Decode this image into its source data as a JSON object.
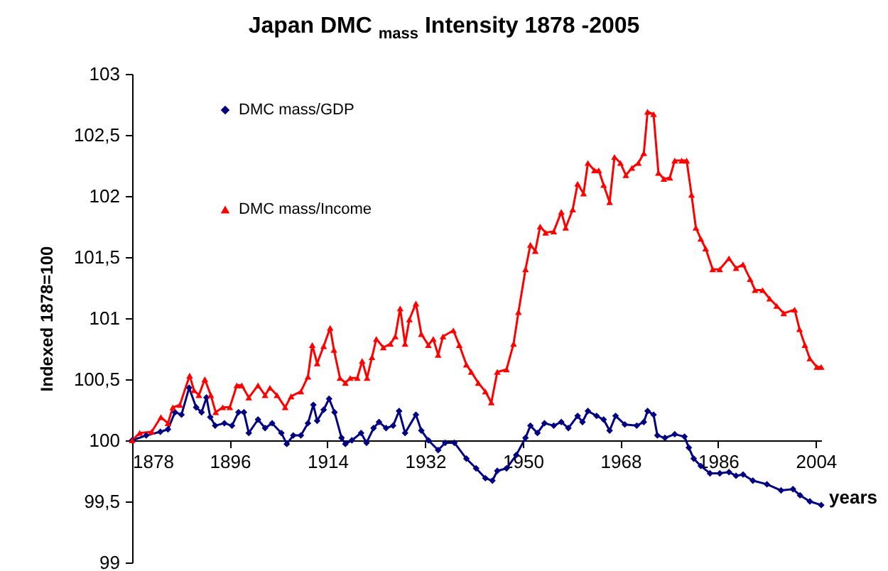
{
  "chart_data": {
    "type": "line",
    "title": "Japan DMC $_{mass}$ Intensity 1878 -2005",
    "xlabel": "years",
    "ylabel": "Indexed 1878=100",
    "xlim": [
      1878,
      2005
    ],
    "xticks": [
      1878,
      1896,
      1914,
      1932,
      1950,
      1968,
      1986,
      2004
    ],
    "ylim": [
      99,
      103
    ],
    "yticks": [
      99,
      {
        "value": 99.5,
        "label": "99,5"
      },
      100,
      {
        "value": 100.5,
        "label": "100,5"
      },
      101,
      {
        "value": 101.5,
        "label": "101,5"
      },
      102,
      {
        "value": 102.5,
        "label": "102,5"
      },
      103
    ],
    "grid": false,
    "legend": "top left",
    "series": [
      {
        "name": "DMC mass/GDP",
        "color": "#000080",
        "marker": "diamond",
        "x": [
          1878,
          1880.6,
          1883.2,
          1884.6,
          1885.9,
          1887.1,
          1888.5,
          1889.8,
          1890.8,
          1891.7,
          1892.4,
          1893.3,
          1895,
          1896.4,
          1897.6,
          1898.6,
          1899.5,
          1901.2,
          1902.5,
          1903.8,
          1905.5,
          1906.5,
          1907.7,
          1909.1,
          1910.4,
          1911.4,
          1912.1,
          1913.3,
          1914.3,
          1915.3,
          1916.6,
          1917.3,
          1918.5,
          1920.2,
          1921.2,
          1922.5,
          1923.5,
          1924.8,
          1926.1,
          1927.2,
          1928.3,
          1930.3,
          1931.3,
          1932.6,
          1934.4,
          1935.7,
          1937.4,
          1939.6,
          1941.4,
          1943.1,
          1944.4,
          1945.3,
          1947,
          1948.8,
          1950.5,
          1951.4,
          1952.7,
          1954,
          1955.7,
          1957.1,
          1958.4,
          1960.1,
          1961,
          1962,
          1963.6,
          1964.9,
          1966,
          1967.1,
          1968.8,
          1971,
          1972.3,
          1973,
          1974.1,
          1974.8,
          1976.2,
          1978,
          1979.8,
          1980.6,
          1981.5,
          1982.8,
          1984.5,
          1986.3,
          1988,
          1989.3,
          1990.6,
          1992.4,
          1995,
          1997.6,
          1999.8,
          2001.1,
          2002.9,
          2005
        ],
        "values": [
          100,
          100.04,
          100.07,
          100.09,
          100.23,
          100.21,
          100.43,
          100.27,
          100.23,
          100.35,
          100.19,
          100.12,
          100.14,
          100.12,
          100.23,
          100.23,
          100.06,
          100.17,
          100.1,
          100.14,
          100.06,
          99.97,
          100.04,
          100.04,
          100.14,
          100.29,
          100.16,
          100.25,
          100.34,
          100.23,
          100.02,
          99.97,
          100,
          100.06,
          99.98,
          100.1,
          100.15,
          100.1,
          100.12,
          100.24,
          100.06,
          100.21,
          100.08,
          100,
          99.92,
          99.98,
          99.98,
          99.85,
          99.77,
          99.69,
          99.67,
          99.75,
          99.77,
          99.88,
          100.02,
          100.12,
          100.06,
          100.14,
          100.12,
          100.15,
          100.1,
          100.2,
          100.15,
          100.24,
          100.2,
          100.17,
          100.08,
          100.2,
          100.13,
          100.12,
          100.15,
          100.24,
          100.21,
          100.04,
          100.02,
          100.05,
          100.03,
          99.94,
          99.85,
          99.79,
          99.73,
          99.73,
          99.74,
          99.71,
          99.72,
          99.67,
          99.64,
          99.59,
          99.6,
          99.55,
          99.5,
          99.47
        ]
      },
      {
        "name": "DMC mass/Income",
        "color": "#ff0000",
        "marker": "triangle",
        "x": [
          1878,
          1879.4,
          1881.6,
          1883.3,
          1884.6,
          1885.5,
          1886.8,
          1888.6,
          1889.4,
          1890.3,
          1891.4,
          1892.5,
          1893.4,
          1894.7,
          1896,
          1897.3,
          1898.2,
          1899.5,
          1901.2,
          1902.5,
          1903.4,
          1904.7,
          1906.2,
          1907.3,
          1909.1,
          1910.4,
          1911.2,
          1912.1,
          1913.3,
          1914.5,
          1915.2,
          1916.3,
          1917.3,
          1918.2,
          1919.5,
          1920.4,
          1921.3,
          1922.2,
          1923,
          1924.3,
          1925.6,
          1926.5,
          1927.4,
          1928.3,
          1929.1,
          1930.3,
          1931.3,
          1932.6,
          1933.5,
          1934.4,
          1935.3,
          1937.2,
          1938.3,
          1939.6,
          1940.5,
          1941.8,
          1943.1,
          1944.2,
          1945.3,
          1947,
          1948.3,
          1949.2,
          1950.5,
          1951.4,
          1952.3,
          1953.2,
          1954.2,
          1955.7,
          1957.1,
          1957.9,
          1959.2,
          1960.1,
          1961.2,
          1962,
          1963.2,
          1964,
          1964.9,
          1966,
          1966.9,
          1968,
          1969,
          1970.1,
          1971.3,
          1972.3,
          1973,
          1974.1,
          1975,
          1976,
          1977.1,
          1978,
          1979.3,
          1980.2,
          1981.1,
          1981.9,
          1982.8,
          1983.7,
          1985,
          1986.3,
          1988,
          1989.3,
          1990.6,
          1991.9,
          1992.8,
          1994.2,
          1995.5,
          1996.8,
          1998.1,
          2000.1,
          2001,
          2002,
          2002.9,
          2004.2,
          2005
        ],
        "values": [
          100,
          100.06,
          100.07,
          100.19,
          100.14,
          100.27,
          100.29,
          100.53,
          100.41,
          100.37,
          100.5,
          100.37,
          100.23,
          100.27,
          100.27,
          100.45,
          100.45,
          100.35,
          100.45,
          100.37,
          100.43,
          100.37,
          100.27,
          100.36,
          100.4,
          100.52,
          100.78,
          100.63,
          100.77,
          100.92,
          100.74,
          100.51,
          100.47,
          100.51,
          100.51,
          100.65,
          100.51,
          100.68,
          100.83,
          100.76,
          100.79,
          100.85,
          101.08,
          100.79,
          100.99,
          101.12,
          100.87,
          100.78,
          100.83,
          100.7,
          100.85,
          100.9,
          100.78,
          100.62,
          100.56,
          100.47,
          100.4,
          100.31,
          100.56,
          100.58,
          100.79,
          101.05,
          101.4,
          101.6,
          101.55,
          101.75,
          101.7,
          101.71,
          101.87,
          101.74,
          101.89,
          102.1,
          102.02,
          102.27,
          102.21,
          102.21,
          102.09,
          101.95,
          102.32,
          102.27,
          102.17,
          102.23,
          102.27,
          102.35,
          102.69,
          102.67,
          102.19,
          102.14,
          102.15,
          102.29,
          102.29,
          102.29,
          102.01,
          101.74,
          101.65,
          101.57,
          101.4,
          101.4,
          101.49,
          101.41,
          101.44,
          101.32,
          101.23,
          101.23,
          101.16,
          101.1,
          101.04,
          101.07,
          100.91,
          100.78,
          100.67,
          100.6,
          100.6
        ]
      }
    ]
  }
}
